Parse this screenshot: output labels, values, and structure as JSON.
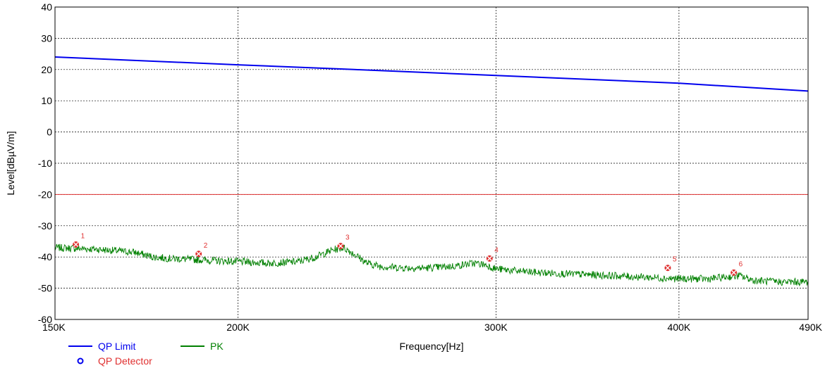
{
  "chart_data": {
    "type": "line",
    "xlabel": "Frequency[Hz]",
    "ylabel": "Level[dBµV/m]",
    "x_scale": "log",
    "xlim": [
      150000,
      490000
    ],
    "ylim": [
      -60,
      40
    ],
    "x_ticks": [
      {
        "value": 150000,
        "label": "150K"
      },
      {
        "value": 200000,
        "label": "200K"
      },
      {
        "value": 300000,
        "label": "300K"
      },
      {
        "value": 400000,
        "label": "400K"
      },
      {
        "value": 490000,
        "label": "490K"
      }
    ],
    "y_ticks": [
      {
        "value": 40,
        "label": "40"
      },
      {
        "value": 30,
        "label": "30"
      },
      {
        "value": 20,
        "label": "20"
      },
      {
        "value": 10,
        "label": "10"
      },
      {
        "value": 0,
        "label": "0"
      },
      {
        "value": -10,
        "label": "-10"
      },
      {
        "value": -20,
        "label": "-20"
      },
      {
        "value": -30,
        "label": "-30"
      },
      {
        "value": -40,
        "label": "-40"
      },
      {
        "value": -50,
        "label": "-50"
      },
      {
        "value": -60,
        "label": "-60"
      }
    ],
    "grid": true,
    "series": [
      {
        "name": "QP Limit",
        "color": "#0000ee",
        "x": [
          150000,
          200000,
          240000,
          300000,
          400000,
          490000
        ],
        "y": [
          24.0,
          21.5,
          20.0,
          18.1,
          15.6,
          13.1
        ]
      },
      {
        "name": "PK",
        "color": "#008000",
        "x": [
          150000,
          160000,
          170000,
          175000,
          180000,
          190000,
          200000,
          210000,
          220000,
          226000,
          232000,
          236000,
          240000,
          245000,
          250000,
          260000,
          270000,
          280000,
          290000,
          295000,
          300000,
          310000,
          320000,
          340000,
          360000,
          380000,
          400000,
          420000,
          430000,
          440000,
          450000,
          470000,
          490000
        ],
        "y": [
          -37.0,
          -37.5,
          -38.5,
          -40.0,
          -40.5,
          -41.0,
          -41.5,
          -42.0,
          -41.5,
          -40.0,
          -37.8,
          -37.0,
          -39.0,
          -42.0,
          -43.0,
          -43.5,
          -43.5,
          -43.0,
          -42.0,
          -42.5,
          -43.8,
          -44.5,
          -45.0,
          -45.5,
          -46.0,
          -46.5,
          -47.0,
          -47.0,
          -46.5,
          -46.0,
          -47.5,
          -48.0,
          -48.0
        ]
      }
    ],
    "reference_line": {
      "y": -20,
      "color": "#e03030"
    },
    "markers": [
      {
        "label": "1",
        "x": 155000,
        "y": -36.0
      },
      {
        "label": "2",
        "x": 188000,
        "y": -39.0
      },
      {
        "label": "3",
        "x": 235000,
        "y": -36.5
      },
      {
        "label": "4",
        "x": 297000,
        "y": -40.5
      },
      {
        "label": "5",
        "x": 393000,
        "y": -43.5
      },
      {
        "label": "6",
        "x": 436000,
        "y": -45.0
      }
    ],
    "legend": {
      "position": "bottom-left",
      "items": [
        {
          "label": "QP Limit",
          "symbol": "line",
          "color": "#0000ee",
          "text_color": "#0000ee"
        },
        {
          "label": "PK",
          "symbol": "line",
          "color": "#008000",
          "text_color": "#008000"
        },
        {
          "label": "QP Detector",
          "symbol": "circle",
          "color": "#0000ee",
          "text_color": "#e03030"
        }
      ]
    },
    "colors": {
      "marker": "#e03030",
      "grid": "#000000",
      "background": "#ffffff"
    }
  }
}
